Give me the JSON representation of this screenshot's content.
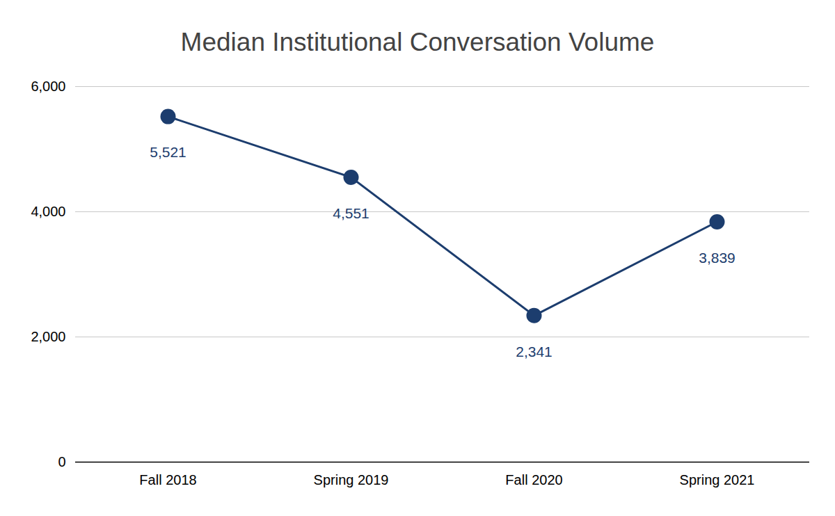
{
  "chart_data": {
    "type": "line",
    "title": "Median Institutional Conversation Volume",
    "categories": [
      "Fall 2018",
      "Spring 2019",
      "Fall 2020",
      "Spring 2021"
    ],
    "values": [
      5521,
      4551,
      2341,
      3839
    ],
    "value_labels": [
      "5,521",
      "4,551",
      "2,341",
      "3,839"
    ],
    "color": "#1c3d6e",
    "marker": "circle",
    "ylim": [
      0,
      6000
    ],
    "yticks": [
      0,
      {
        "value": 2000,
        "label": "2,000"
      },
      {
        "value": 4000,
        "label": "4,000"
      },
      {
        "value": 6000,
        "label": "6,000"
      }
    ],
    "grid": true,
    "data_labels": true
  }
}
